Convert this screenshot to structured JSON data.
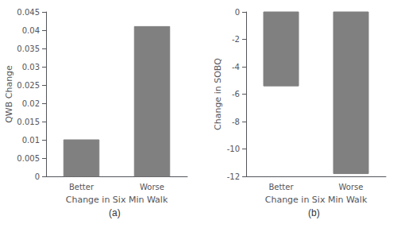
{
  "chart_data": [
    {
      "type": "bar",
      "categories": [
        "Better",
        "Worse"
      ],
      "values": [
        0.01,
        0.041
      ],
      "ylabel": "QWB Change",
      "xlabel": "Change in Six Min Walk",
      "annotation": "(a)",
      "ylim": [
        0,
        0.045
      ],
      "yticks": [
        0,
        0.005,
        0.01,
        0.015,
        0.02,
        0.025,
        0.03,
        0.035,
        0.04,
        0.045
      ],
      "color": "#808080",
      "grid": false
    },
    {
      "type": "bar",
      "categories": [
        "Better",
        "Worse"
      ],
      "values": [
        -5.4,
        -11.8
      ],
      "ylabel": "Change in SOBQ",
      "xlabel": "Change in Six Min Walk",
      "annotation": "(b)",
      "ylim": [
        -12,
        0
      ],
      "yticks": [
        0,
        -2,
        -4,
        -6,
        -8,
        -10,
        -12
      ],
      "color": "#808080",
      "grid": false
    }
  ]
}
